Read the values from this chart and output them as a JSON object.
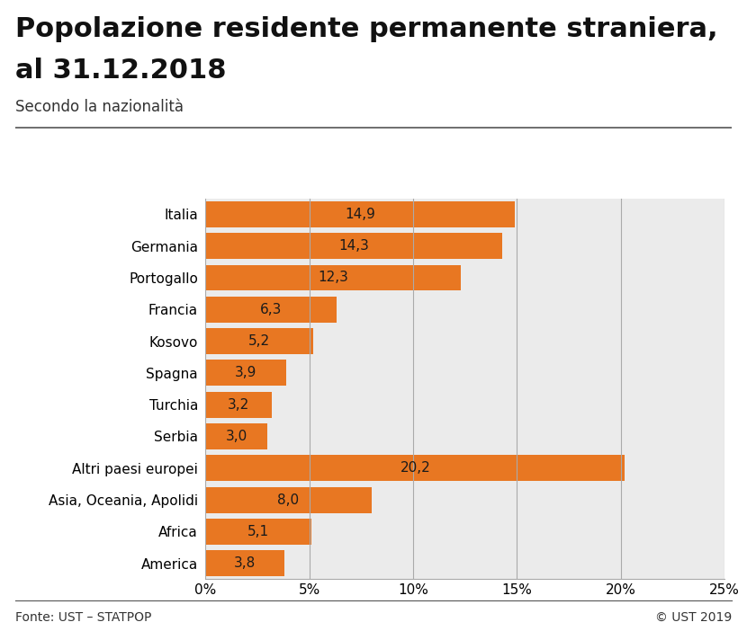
{
  "title_line1": "Popolazione residente permanente straniera,",
  "title_line2": "al 31.12.2018",
  "subtitle": "Secondo la nazionalità",
  "categories": [
    "Italia",
    "Germania",
    "Portogallo",
    "Francia",
    "Kosovo",
    "Spagna",
    "Turchia",
    "Serbia",
    "Altri paesi europei",
    "Asia, Oceania, Apolidi",
    "Africa",
    "America"
  ],
  "values": [
    14.9,
    14.3,
    12.3,
    6.3,
    5.2,
    3.9,
    3.2,
    3.0,
    20.2,
    8.0,
    5.1,
    3.8
  ],
  "bar_color": "#E87722",
  "bar_labels": [
    "14,9",
    "14,3",
    "12,3",
    "6,3",
    "5,2",
    "3,9",
    "3,2",
    "3,0",
    "20,2",
    "8,0",
    "5,1",
    "3,8"
  ],
  "xlim": [
    0,
    25
  ],
  "xticks": [
    0,
    5,
    10,
    15,
    20,
    25
  ],
  "xticklabels": [
    "0%",
    "5%",
    "10%",
    "15%",
    "20%",
    "25%"
  ],
  "plot_bg_color": "#ebebeb",
  "fig_bg_color": "#ffffff",
  "footer_left": "Fonte: UST – STATPOP",
  "footer_right": "© UST 2019",
  "title_fontsize": 22,
  "subtitle_fontsize": 12,
  "label_fontsize": 11,
  "tick_fontsize": 11,
  "bar_label_fontsize": 11,
  "footer_fontsize": 10,
  "bar_label_color": "#1a1a1a"
}
